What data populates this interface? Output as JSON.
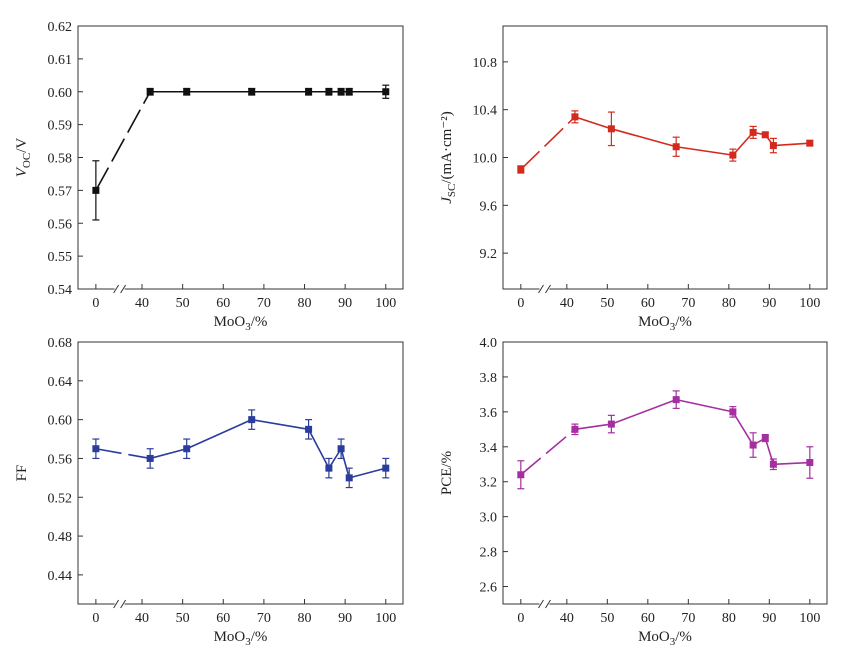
{
  "charts": [
    {
      "type": "line",
      "series_color": "#111111",
      "x_ticks": [
        "0",
        "40",
        "50",
        "60",
        "70",
        "80",
        "90",
        "100"
      ],
      "y_ticks": [
        "0.54",
        "0.55",
        "0.56",
        "0.57",
        "0.58",
        "0.59",
        "0.60",
        "0.61",
        "0.62"
      ],
      "xlabel": {
        "base": "MoO",
        "sub": "3",
        "tail": "/%"
      },
      "ylabel": {
        "base": "V",
        "sub": "OC",
        "tail": "/V"
      }
    },
    {
      "type": "line",
      "series_color": "#d42a1e",
      "x_ticks": [
        "0",
        "40",
        "50",
        "60",
        "70",
        "80",
        "90",
        "100"
      ],
      "y_ticks": [
        "9.2",
        "9.6",
        "10.0",
        "10.4",
        "10.8"
      ],
      "xlabel": {
        "base": "MoO",
        "sub": "3",
        "tail": "/%"
      },
      "ylabel": {
        "base": "J",
        "sub": "SC",
        "tail": "/(mA·cm",
        "sup": "−2",
        "tail2": ")"
      }
    },
    {
      "type": "line",
      "series_color": "#2a3c9c",
      "x_ticks": [
        "0",
        "40",
        "50",
        "60",
        "70",
        "80",
        "90",
        "100"
      ],
      "y_ticks": [
        "0.44",
        "0.48",
        "0.52",
        "0.56",
        "0.60",
        "0.64",
        "0.68"
      ],
      "xlabel": {
        "base": "MoO",
        "sub": "3",
        "tail": "/%"
      },
      "ylabel": {
        "base": "FF"
      }
    },
    {
      "type": "line",
      "series_color": "#a52ea0",
      "x_ticks": [
        "0",
        "40",
        "50",
        "60",
        "70",
        "80",
        "90",
        "100"
      ],
      "y_ticks": [
        "2.6",
        "2.8",
        "3.0",
        "3.2",
        "3.4",
        "3.6",
        "3.8",
        "4.0"
      ],
      "xlabel": {
        "base": "MoO",
        "sub": "3",
        "tail": "/%"
      },
      "ylabel": {
        "base": "PCE/%"
      }
    }
  ],
  "chart_data": [
    {
      "type": "line",
      "xlabel": "MoO3/%",
      "ylabel": "VOC/V",
      "x_axis_break": [
        0,
        40
      ],
      "ylim": [
        0.54,
        0.62
      ],
      "series": [
        {
          "x": [
            0,
            42,
            51,
            67,
            81,
            86,
            89,
            91,
            100
          ],
          "y": [
            0.57,
            0.6,
            0.6,
            0.6,
            0.6,
            0.6,
            0.6,
            0.6,
            0.6
          ],
          "err": [
            0.009,
            0.001,
            0.001,
            0.001,
            0.001,
            0.001,
            0.001,
            0.001,
            0.002
          ]
        }
      ]
    },
    {
      "type": "line",
      "xlabel": "MoO3/%",
      "ylabel": "JSC/(mA·cm−2)",
      "x_axis_break": [
        0,
        40
      ],
      "ylim": [
        8.9,
        11.1
      ],
      "series": [
        {
          "x": [
            0,
            42,
            51,
            67,
            81,
            86,
            89,
            91,
            100
          ],
          "y": [
            9.9,
            10.34,
            10.24,
            10.09,
            10.02,
            10.21,
            10.19,
            10.1,
            10.12
          ],
          "err": [
            0.03,
            0.05,
            0.14,
            0.08,
            0.05,
            0.05,
            0.02,
            0.06,
            0.02
          ]
        }
      ]
    },
    {
      "type": "line",
      "xlabel": "MoO3/%",
      "ylabel": "FF",
      "x_axis_break": [
        0,
        40
      ],
      "ylim": [
        0.41,
        0.68
      ],
      "series": [
        {
          "x": [
            0,
            42,
            51,
            67,
            81,
            86,
            89,
            91,
            100
          ],
          "y": [
            0.57,
            0.56,
            0.57,
            0.6,
            0.59,
            0.55,
            0.57,
            0.54,
            0.55
          ],
          "err": [
            0.01,
            0.01,
            0.01,
            0.01,
            0.01,
            0.01,
            0.01,
            0.01,
            0.01
          ]
        }
      ]
    },
    {
      "type": "line",
      "xlabel": "MoO3/%",
      "ylabel": "PCE/%",
      "x_axis_break": [
        0,
        40
      ],
      "ylim": [
        2.5,
        4.0
      ],
      "series": [
        {
          "x": [
            0,
            42,
            51,
            67,
            81,
            86,
            89,
            91,
            100
          ],
          "y": [
            3.24,
            3.5,
            3.53,
            3.67,
            3.6,
            3.41,
            3.45,
            3.3,
            3.31
          ],
          "err": [
            0.08,
            0.03,
            0.05,
            0.05,
            0.03,
            0.07,
            0.02,
            0.03,
            0.09
          ]
        }
      ]
    }
  ]
}
